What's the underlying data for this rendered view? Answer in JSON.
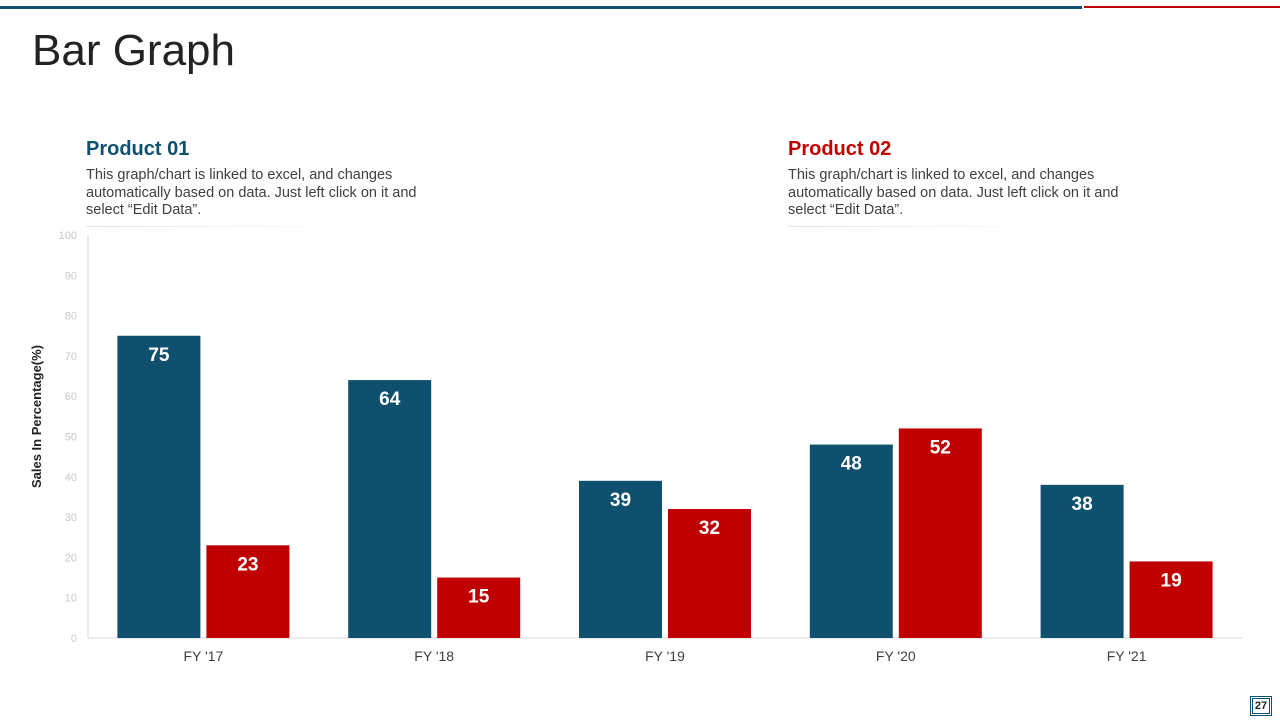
{
  "slide": {
    "title": "Bar Graph",
    "page_number": "27"
  },
  "products": [
    {
      "name": "Product 01",
      "description": "This graph/chart is linked to excel, and changes automatically based on data. Just left click on it and select “Edit Data”."
    },
    {
      "name": "Product 02",
      "description": "This graph/chart is linked to excel, and changes automatically based on data. Just left click on it and select “Edit Data”."
    }
  ],
  "colors": {
    "product01": "#10506f",
    "product02": "#c00000"
  },
  "chart_data": {
    "type": "bar",
    "title": "",
    "xlabel": "",
    "ylabel": "Sales In Percentage(%)",
    "categories": [
      "FY '17",
      "FY '18",
      "FY '19",
      "FY '20",
      "FY '21"
    ],
    "series": [
      {
        "name": "Product 01",
        "values": [
          75,
          64,
          39,
          48,
          38
        ]
      },
      {
        "name": "Product 02",
        "values": [
          23,
          15,
          32,
          52,
          19
        ]
      }
    ],
    "ylim": [
      0,
      100
    ],
    "yticks": [
      0,
      10,
      20,
      30,
      40,
      50,
      60,
      70,
      80,
      90,
      100
    ],
    "grid": false,
    "data_labels": true
  }
}
